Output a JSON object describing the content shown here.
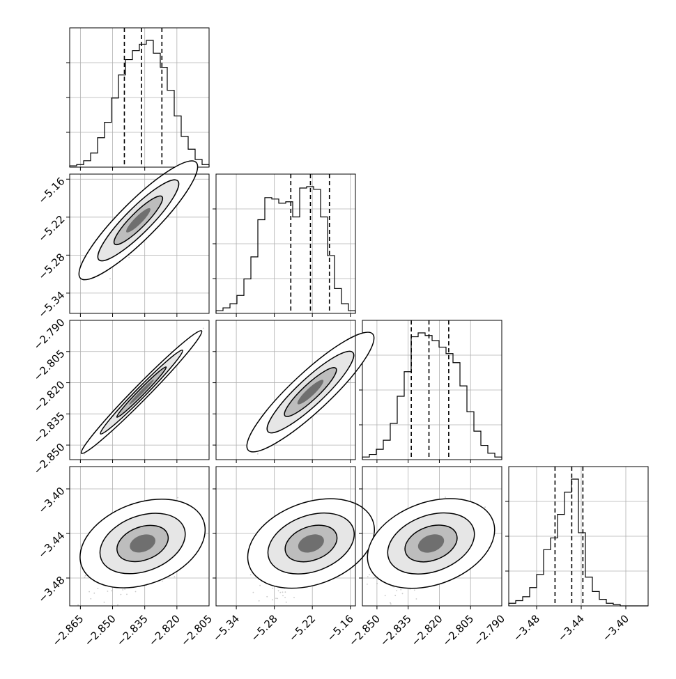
{
  "chart_data": {
    "type": "corner",
    "grid": true,
    "parameters": [
      {
        "range": [
          -2.87,
          -2.805
        ],
        "ticks": [
          "−2.865",
          "−2.850",
          "−2.835",
          "−2.820",
          "−2.805"
        ],
        "tick_values": [
          -2.865,
          -2.85,
          -2.835,
          -2.82,
          -2.805
        ],
        "quantiles": [
          -2.8445,
          -2.8365,
          -2.827
        ],
        "hist": [
          0.01,
          0.02,
          0.05,
          0.11,
          0.23,
          0.35,
          0.54,
          0.72,
          0.84,
          0.91,
          0.96,
          0.99,
          0.89,
          0.78,
          0.6,
          0.4,
          0.24,
          0.14,
          0.06,
          0.02
        ]
      },
      {
        "range": [
          -5.372,
          -5.152
        ],
        "ticks": [
          "−5.34",
          "−5.28",
          "−5.22",
          "−5.16"
        ],
        "tick_values": [
          -5.34,
          -5.28,
          -5.22,
          -5.16
        ],
        "quantiles": [
          -5.254,
          -5.223,
          -5.193
        ],
        "hist": [
          0.02,
          0.04,
          0.07,
          0.13,
          0.25,
          0.41,
          0.68,
          0.84,
          0.83,
          0.8,
          0.81,
          0.7,
          0.91,
          0.92,
          0.9,
          0.7,
          0.42,
          0.18,
          0.07,
          0.02
        ]
      },
      {
        "range": [
          -2.857,
          -2.79
        ],
        "ticks": [
          "−2.850",
          "−2.835",
          "−2.820",
          "−2.805",
          "−2.790"
        ],
        "tick_values": [
          -2.85,
          -2.835,
          -2.82,
          -2.805,
          -2.79
        ],
        "quantiles": [
          -2.8335,
          -2.825,
          -2.8155
        ],
        "hist": [
          0.02,
          0.04,
          0.08,
          0.15,
          0.28,
          0.49,
          0.68,
          0.95,
          0.98,
          0.96,
          0.92,
          0.87,
          0.82,
          0.75,
          0.57,
          0.37,
          0.22,
          0.11,
          0.05,
          0.02
        ]
      },
      {
        "range": [
          -3.505,
          -3.38
        ],
        "ticks": [
          "−3.48",
          "−3.44",
          "−3.40"
        ],
        "tick_values": [
          -3.48,
          -3.44,
          -3.4
        ],
        "quantiles": [
          -3.4635,
          -3.4485,
          -3.4385
        ],
        "hist": [
          0.02,
          0.04,
          0.07,
          0.14,
          0.24,
          0.43,
          0.52,
          0.7,
          0.87,
          0.97,
          0.56,
          0.22,
          0.11,
          0.05,
          0.02,
          0.01,
          0.0,
          0.0,
          0.0,
          0.0
        ]
      }
    ],
    "pairs": [
      {
        "row": 1,
        "col": 0,
        "center": [
          -2.838,
          -5.225
        ],
        "sd": [
          0.0085,
          0.031
        ],
        "rho": 0.93,
        "skew": 0
      },
      {
        "row": 2,
        "col": 0,
        "center": [
          -2.8365,
          -2.8245
        ],
        "sd": [
          0.009,
          0.0095
        ],
        "rho": 0.995,
        "skew": 0
      },
      {
        "row": 2,
        "col": 1,
        "center": [
          -5.223,
          -2.8245
        ],
        "sd": [
          0.031,
          0.0095
        ],
        "rho": 0.93,
        "skew": 0
      },
      {
        "row": 3,
        "col": 0,
        "center": [
          -2.836,
          -3.449
        ],
        "sd": [
          0.009,
          0.013
        ],
        "rho": 0.5,
        "skew": 1
      },
      {
        "row": 3,
        "col": 1,
        "center": [
          -5.222,
          -3.449
        ],
        "sd": [
          0.031,
          0.013
        ],
        "rho": 0.5,
        "skew": 1
      },
      {
        "row": 3,
        "col": 2,
        "center": [
          -2.824,
          -3.449
        ],
        "sd": [
          0.0095,
          0.013
        ],
        "rho": 0.5,
        "skew": 1
      }
    ]
  }
}
